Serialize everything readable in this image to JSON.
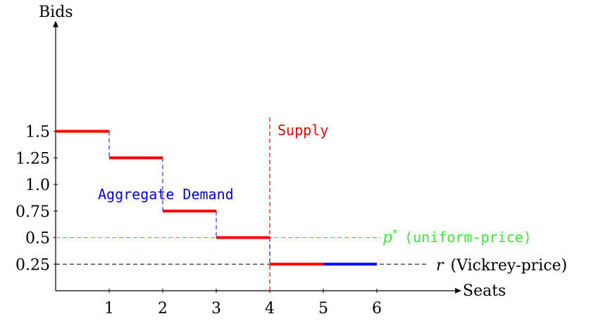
{
  "chart_data": {
    "type": "line",
    "xlabel": "Seats",
    "ylabel": "Bids",
    "xticks": [
      1,
      2,
      3,
      4,
      5,
      6
    ],
    "yticks": [
      {
        "value": 1.5,
        "label": "1.5"
      },
      {
        "value": 1.25,
        "label": "1.25"
      },
      {
        "value": 1.0,
        "label": "1.0"
      },
      {
        "value": 0.75,
        "label": "0.75"
      },
      {
        "value": 0.5,
        "label": "0.5"
      },
      {
        "value": 0.25,
        "label": "0.25"
      }
    ],
    "xlim": [
      0,
      7.5
    ],
    "ylim": [
      0,
      2.5
    ],
    "grid": false,
    "demand_steps": [
      {
        "x0": 0,
        "x1": 1,
        "y": 1.5,
        "color": "#ff0000"
      },
      {
        "x0": 1,
        "x1": 2,
        "y": 1.25,
        "color": "#ff0000"
      },
      {
        "x0": 2,
        "x1": 3,
        "y": 0.75,
        "color": "#ff0000"
      },
      {
        "x0": 3,
        "x1": 4,
        "y": 0.5,
        "color": "#ff0000"
      },
      {
        "x0": 4,
        "x1": 5,
        "y": 0.25,
        "color": "#ff0000"
      },
      {
        "x0": 5,
        "x1": 6,
        "y": 0.25,
        "color": "#0000ff"
      }
    ],
    "demand_risers": [
      {
        "x": 1,
        "y0": 1.5,
        "y1": 1.25
      },
      {
        "x": 2,
        "y0": 1.25,
        "y1": 0.75
      },
      {
        "x": 3,
        "y0": 0.75,
        "y1": 0.5
      },
      {
        "x": 4,
        "y0": 0.5,
        "y1": 0.25
      }
    ],
    "supply": {
      "x": 4,
      "label": "Supply",
      "color": "#ff0000"
    },
    "uniform_price": {
      "y": 0.5,
      "label_symbol": "p*",
      "label_text": "(uniform-price)",
      "color": "#33ee33"
    },
    "vickrey_price": {
      "y": 0.25,
      "label_symbol": "r",
      "label_text": "(Vickrey-price)",
      "color": "#000000"
    },
    "demand_label": "Aggregate Demand",
    "demand_label_color": "#0000ff"
  }
}
